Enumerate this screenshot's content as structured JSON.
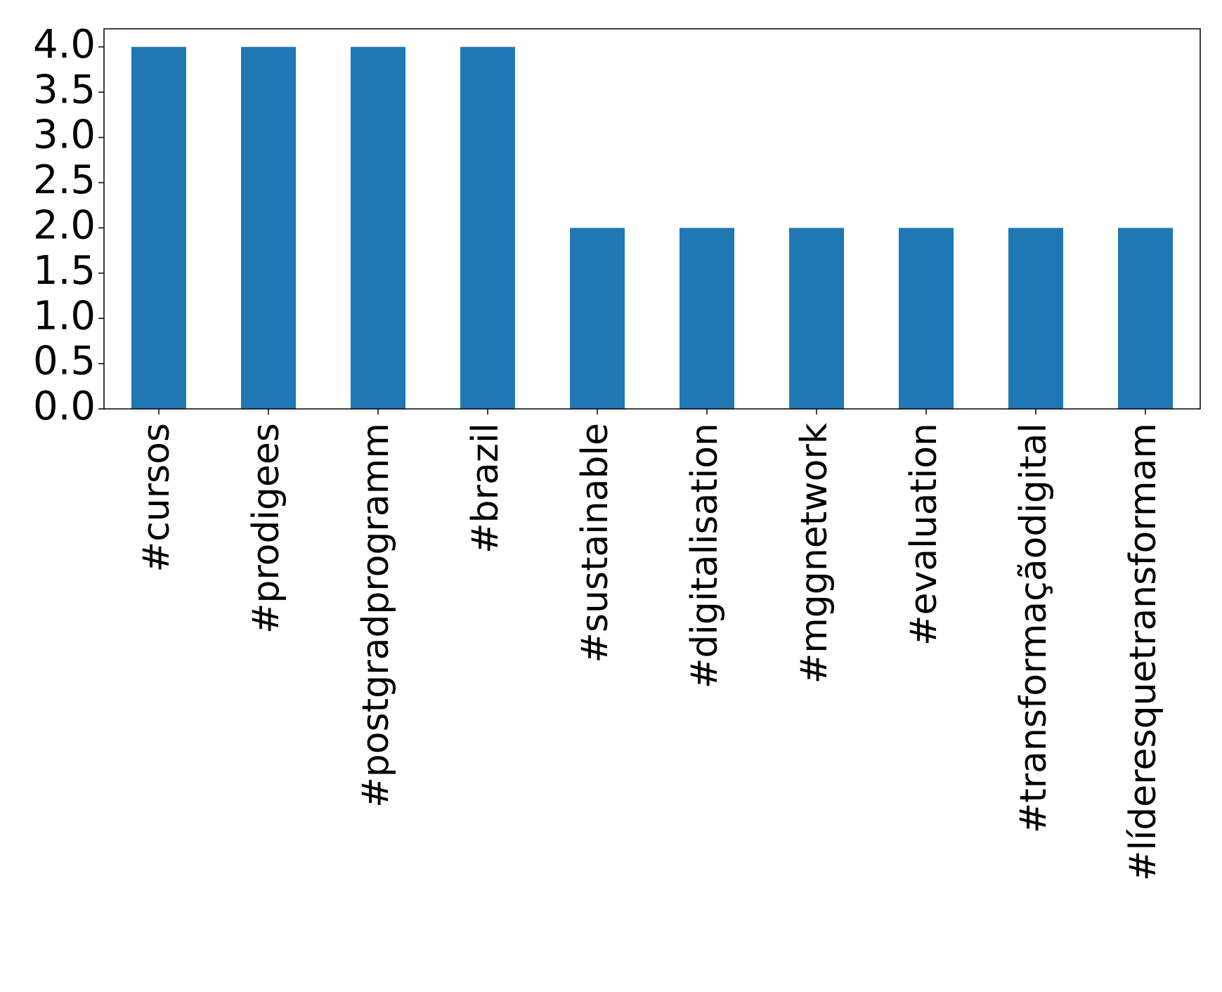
{
  "chart_data": {
    "type": "bar",
    "categories": [
      "#cursos",
      "#prodigees",
      "#postgradprogramm",
      "#brazil",
      "#sustainable",
      "#digitalisation",
      "#mggnetwork",
      "#evaluation",
      "#transformaçãodigital",
      "#líderesquetransformam"
    ],
    "values": [
      4,
      4,
      4,
      4,
      2,
      2,
      2,
      2,
      2,
      2
    ],
    "color": "#1f77b4",
    "ylim": [
      0,
      4.2
    ],
    "yticks": [
      {
        "value": 0,
        "label": "0.0"
      },
      {
        "value": 0.5,
        "label": "0.5"
      },
      {
        "value": 1,
        "label": "1.0"
      },
      {
        "value": 1.5,
        "label": "1.5"
      },
      {
        "value": 2,
        "label": "2.0"
      },
      {
        "value": 2.5,
        "label": "2.5"
      },
      {
        "value": 3,
        "label": "3.0"
      },
      {
        "value": 3.5,
        "label": "3.5"
      },
      {
        "value": 4,
        "label": "4.0"
      }
    ],
    "grid": false
  }
}
